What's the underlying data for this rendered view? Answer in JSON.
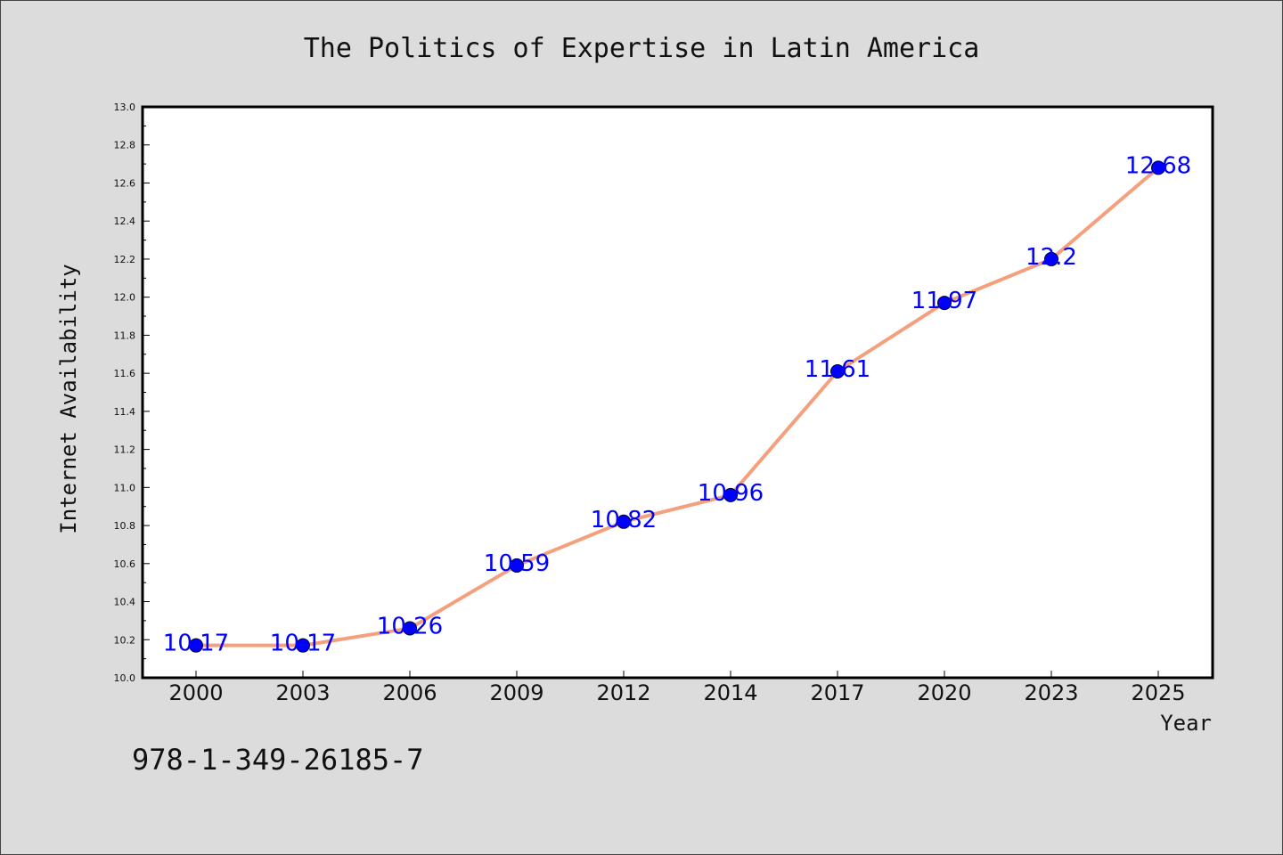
{
  "colors": {
    "background": "#dcdcdc",
    "plot_background": "#ffffff",
    "line": "#f4a07c",
    "marker": "#0000ff",
    "data_label": "#0000ff"
  },
  "footer_text": "978-1-349-26185-7",
  "chart_data": {
    "type": "line",
    "title": "The Politics of Expertise in Latin America",
    "xlabel": "Year",
    "ylabel": "Internet Availability",
    "categories": [
      "2000",
      "2003",
      "2006",
      "2009",
      "2012",
      "2014",
      "2017",
      "2020",
      "2023",
      "2025"
    ],
    "series": [
      {
        "values": [
          10.17,
          10.17,
          10.26,
          10.59,
          10.82,
          10.96,
          11.61,
          11.97,
          12.2,
          12.68
        ]
      }
    ],
    "data_labels": [
      "10.17",
      "10.17",
      "10.26",
      "10.59",
      "10.82",
      "10.96",
      "11.61",
      "11.97",
      "12.2",
      "12.68"
    ],
    "ylim": [
      10.0,
      13.0
    ],
    "yticks": [
      "10.0",
      "10.2",
      "10.4",
      "10.6",
      "10.8",
      "11.0",
      "11.2",
      "11.4",
      "11.6",
      "11.8",
      "12.0",
      "12.2",
      "12.4",
      "12.6",
      "12.8",
      "13.0"
    ],
    "grid": false,
    "legend": "none"
  }
}
